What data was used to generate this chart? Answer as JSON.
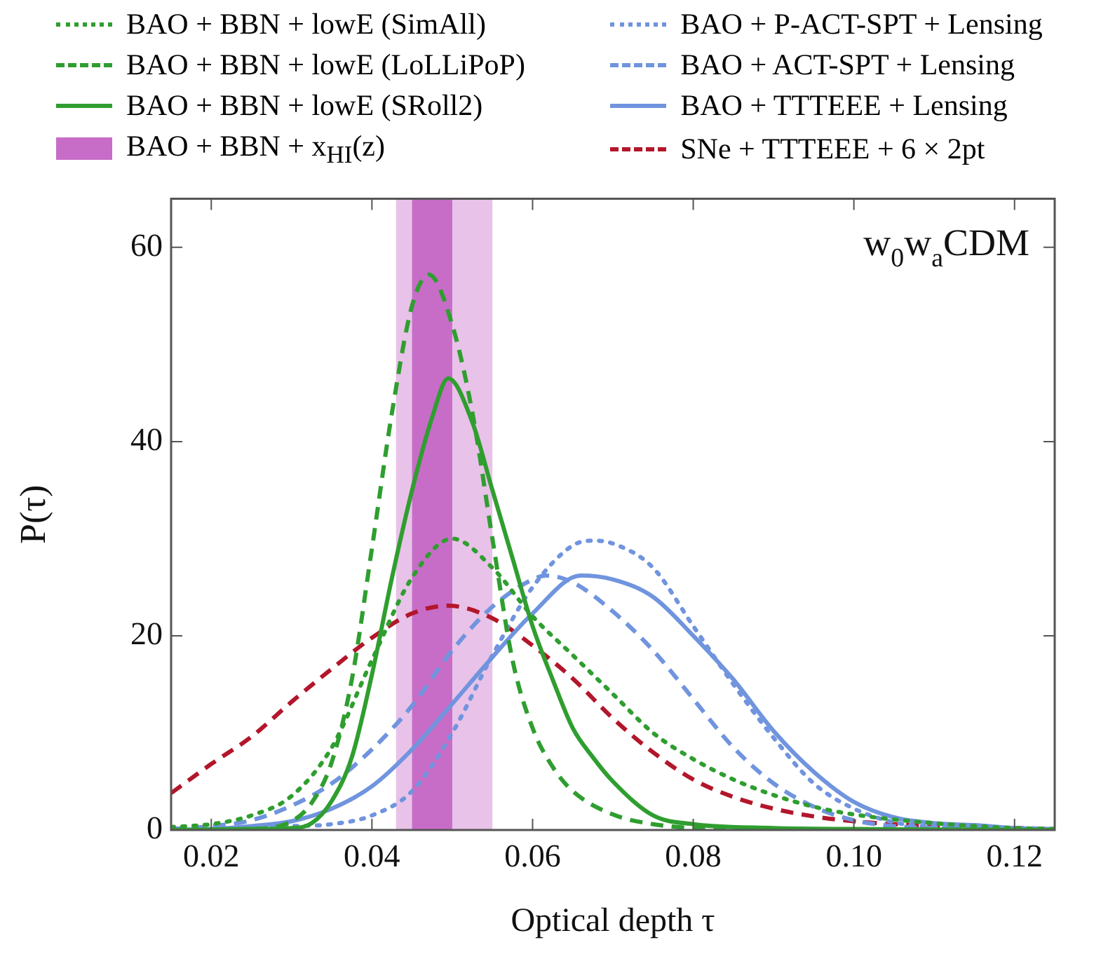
{
  "chart_data": {
    "type": "line",
    "xlabel": "Optical depth τ",
    "ylabel": "P(τ)",
    "xlim": [
      0.015,
      0.125
    ],
    "ylim": [
      0,
      65
    ],
    "xticks": [
      0.02,
      0.04,
      0.06,
      0.08,
      {
        "value": 0.1,
        "label": "0.10"
      },
      0.12
    ],
    "yticks": [
      0,
      20,
      40,
      60
    ],
    "grid": false,
    "legend": "top",
    "annotations": [
      "w$_{0}$w$_{a}$CDM"
    ],
    "bands": [
      {
        "axis": "x",
        "from": 0.043,
        "to": 0.055,
        "color": "#e8c2e8"
      },
      {
        "axis": "x",
        "from": 0.045,
        "to": 0.05,
        "color": "#c76dc7",
        "label": "BAO + BBN + x$_{HI}$(z)"
      }
    ],
    "series": [
      {
        "name": "BAO + BBN + lowE (SimAll)",
        "color": "#2f9e2f",
        "line_style": "dotted",
        "x": [
          0.015,
          0.02,
          0.025,
          0.03,
          0.035,
          0.04,
          0.045,
          0.05,
          0.055,
          0.06,
          0.065,
          0.07,
          0.075,
          0.08,
          0.085,
          0.09,
          0.095,
          0.1,
          0.11,
          0.12,
          0.125
        ],
        "values": [
          0.3,
          0.6,
          1.5,
          3.5,
          8.5,
          17.5,
          26,
          30,
          27,
          22,
          18,
          14,
          10,
          7.3,
          5.2,
          3.6,
          2.4,
          1.6,
          0.7,
          0.2,
          0.1
        ]
      },
      {
        "name": "BAO + BBN + lowE (LoLLiPoP)",
        "color": "#2f9e2f",
        "line_style": "dashed",
        "x": [
          0.015,
          0.025,
          0.03,
          0.0325,
          0.035,
          0.0375,
          0.04,
          0.0425,
          0.045,
          0.0471,
          0.05,
          0.0525,
          0.055,
          0.0575,
          0.06,
          0.0625,
          0.065,
          0.07,
          0.075,
          0.08,
          0.09,
          0.1,
          0.12
        ],
        "values": [
          0,
          0.1,
          0.9,
          2.8,
          7,
          15.5,
          29,
          43,
          54,
          57.2,
          52,
          43,
          30,
          17.5,
          10.5,
          6.5,
          4,
          1.6,
          0.6,
          0.2,
          0,
          0,
          0
        ]
      },
      {
        "name": "BAO + BBN + lowE (SRoll2)",
        "color": "#2f9e2f",
        "line_style": "solid",
        "x": [
          0.015,
          0.025,
          0.03,
          0.0325,
          0.035,
          0.0375,
          0.04,
          0.0425,
          0.045,
          0.0475,
          0.0495,
          0.0525,
          0.055,
          0.0575,
          0.06,
          0.0625,
          0.065,
          0.0675,
          0.07,
          0.075,
          0.08,
          0.09,
          0.1,
          0.125
        ],
        "values": [
          0,
          0.1,
          0.2,
          0.7,
          3,
          7.5,
          16,
          26,
          35,
          42.5,
          46.5,
          42,
          35,
          28,
          21,
          15.5,
          10.5,
          7.5,
          5,
          1.5,
          0.6,
          0.2,
          0.1,
          0
        ]
      },
      {
        "name": "BAO + P-ACT-SPT + Lensing",
        "color": "#7094de",
        "line_style": "dotted",
        "x": [
          0.015,
          0.02,
          0.03,
          0.035,
          0.04,
          0.045,
          0.05,
          0.055,
          0.06,
          0.065,
          0.0675,
          0.07,
          0.075,
          0.08,
          0.085,
          0.09,
          0.095,
          0.1,
          0.105,
          0.11,
          0.12
        ],
        "values": [
          0,
          0.1,
          0.4,
          0.6,
          1.5,
          4,
          10,
          18,
          25,
          29.3,
          29.8,
          29.5,
          27,
          21,
          15,
          9.5,
          4.8,
          2.2,
          0.8,
          0.3,
          0.1
        ]
      },
      {
        "name": "BAO + ACT-SPT + Lensing",
        "color": "#7094de",
        "line_style": "dashed",
        "x": [
          0.015,
          0.02,
          0.025,
          0.03,
          0.035,
          0.04,
          0.045,
          0.05,
          0.055,
          0.06,
          0.0617,
          0.065,
          0.07,
          0.075,
          0.08,
          0.085,
          0.09,
          0.095,
          0.1,
          0.105,
          0.11,
          0.12,
          0.125
        ],
        "values": [
          0.1,
          0.4,
          1,
          2.5,
          4.8,
          8.3,
          12.8,
          18.5,
          23,
          25.8,
          26.2,
          25.5,
          22.5,
          18.5,
          13.5,
          8.5,
          4.8,
          2.4,
          1,
          0.4,
          0.2,
          0,
          0
        ]
      },
      {
        "name": "BAO + TTTEEE + Lensing",
        "color": "#7094de",
        "line_style": "solid",
        "x": [
          0.015,
          0.02,
          0.025,
          0.03,
          0.035,
          0.04,
          0.045,
          0.05,
          0.055,
          0.06,
          0.066,
          0.07,
          0.075,
          0.08,
          0.085,
          0.09,
          0.095,
          0.1,
          0.105,
          0.11,
          0.115,
          0.12,
          0.125
        ],
        "values": [
          0,
          0.1,
          0.4,
          0.9,
          2.2,
          4.5,
          8.3,
          13,
          17.8,
          22.3,
          26.2,
          25.8,
          24,
          20,
          15.5,
          10.2,
          6,
          2.9,
          1.3,
          0.7,
          0.5,
          0.2,
          0.1
        ]
      },
      {
        "name": "SNe + TTTEEE + 6 × 2pt",
        "color": "#b3162b",
        "line_style": "dashed",
        "x": [
          0.015,
          0.02,
          0.025,
          0.03,
          0.035,
          0.04,
          0.045,
          0.0495,
          0.055,
          0.06,
          0.065,
          0.07,
          0.075,
          0.08,
          0.085,
          0.09,
          0.095,
          0.1,
          0.11,
          0.12,
          0.125
        ],
        "values": [
          3.8,
          6.8,
          9.6,
          13.2,
          16.6,
          19.8,
          22.3,
          23.1,
          21.8,
          19,
          15.6,
          11.5,
          8,
          5.2,
          3.4,
          2.2,
          1.4,
          0.9,
          0.4,
          0.2,
          0.1
        ]
      }
    ]
  }
}
